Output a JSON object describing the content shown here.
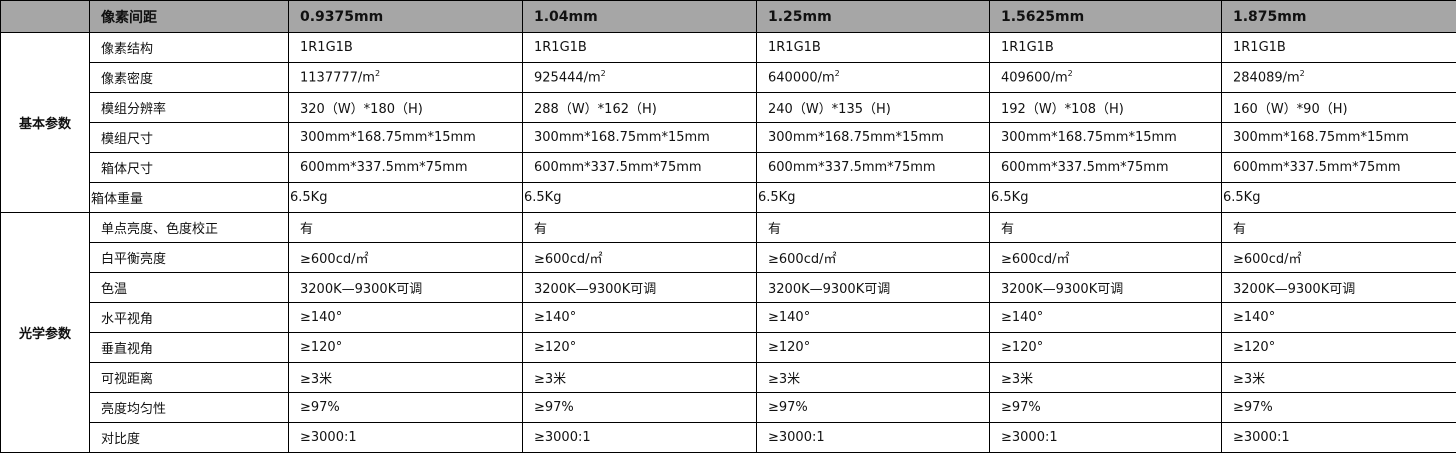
{
  "header": {
    "label": "像素间距",
    "pitches": [
      "0.9375mm",
      "1.04mm",
      "1.25mm",
      "1.5625mm",
      "1.875mm"
    ]
  },
  "groups": [
    {
      "title": "基本参数",
      "rows": [
        {
          "label": "像素结构",
          "values": [
            "1R1G1B",
            "1R1G1B",
            "1R1G1B",
            "1R1G1B",
            "1R1G1B"
          ]
        },
        {
          "label": "像素密度",
          "values": [
            "1137777/m",
            "925444/m",
            "640000/m",
            "409600/m",
            "284089/m"
          ],
          "sup": "2"
        },
        {
          "label": "模组分辨率",
          "values": [
            "320（W）*180（H)",
            "288（W）*162（H)",
            "240（W）*135（H)",
            "192（W）*108（H)",
            "160（W）*90（H)"
          ]
        },
        {
          "label": "模组尺寸",
          "values": [
            "300mm*168.75mm*15mm",
            "300mm*168.75mm*15mm",
            "300mm*168.75mm*15mm",
            "300mm*168.75mm*15mm",
            "300mm*168.75mm*15mm"
          ]
        },
        {
          "label": "箱体尺寸",
          "values": [
            "600mm*337.5mm*75mm",
            "600mm*337.5mm*75mm",
            "600mm*337.5mm*75mm",
            "600mm*337.5mm*75mm",
            "600mm*337.5mm*75mm"
          ]
        },
        {
          "label": "箱体重量",
          "values": [
            "6.5Kg",
            "6.5Kg",
            "6.5Kg",
            "6.5Kg",
            "6.5Kg"
          ]
        }
      ]
    },
    {
      "title": "光学参数",
      "rows": [
        {
          "label": "单点亮度、色度校正",
          "values": [
            "有",
            "有",
            "有",
            "有",
            "有"
          ]
        },
        {
          "label": "白平衡亮度",
          "values": [
            "≥600cd/㎡",
            "≥600cd/㎡",
            "≥600cd/㎡",
            "≥600cd/㎡",
            "≥600cd/㎡"
          ]
        },
        {
          "label": "色温",
          "values": [
            "3200K—9300K可调",
            "3200K—9300K可调",
            "3200K—9300K可调",
            "3200K—9300K可调",
            "3200K—9300K可调"
          ]
        },
        {
          "label": "水平视角",
          "values": [
            "≥140°",
            "≥140°",
            "≥140°",
            "≥140°",
            "≥140°"
          ]
        },
        {
          "label": "垂直视角",
          "values": [
            "≥120°",
            "≥120°",
            "≥120°",
            "≥120°",
            "≥120°"
          ]
        },
        {
          "label": "可视距离",
          "values": [
            "≥3米",
            "≥3米",
            "≥3米",
            "≥3米",
            "≥3米"
          ]
        },
        {
          "label": "亮度均匀性",
          "values": [
            "≥97%",
            "≥97%",
            "≥97%",
            "≥97%",
            "≥97%"
          ]
        },
        {
          "label": "对比度",
          "values": [
            "≥3000:1",
            "≥3000:1",
            "≥3000:1",
            "≥3000:1",
            "≥3000:1"
          ]
        }
      ]
    }
  ]
}
